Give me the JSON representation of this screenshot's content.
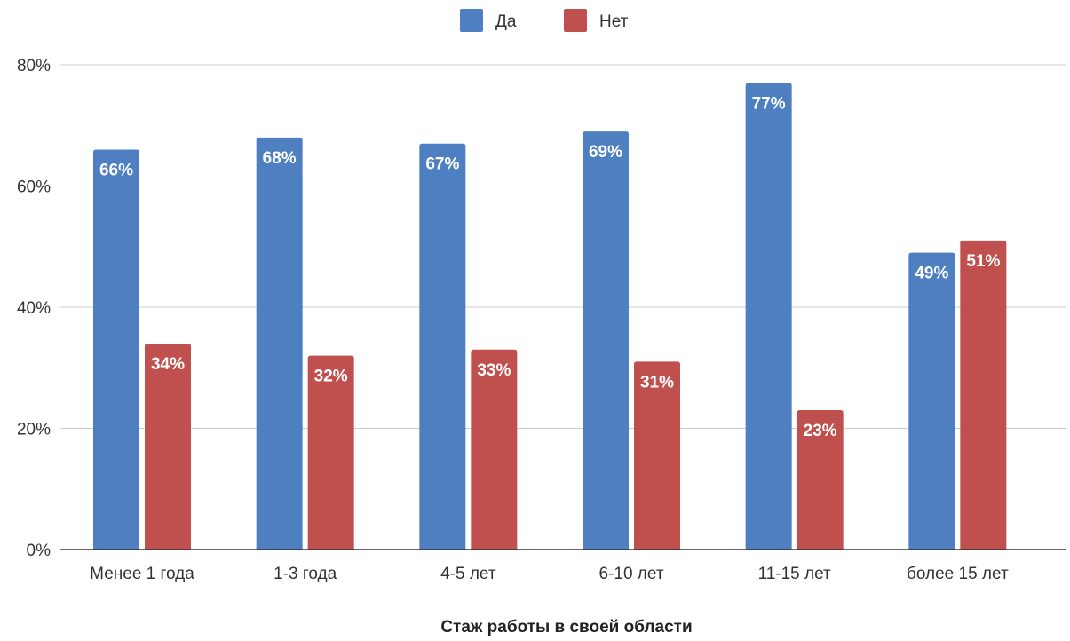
{
  "chart_data": {
    "type": "bar",
    "categories": [
      "Менее 1 года",
      "1-3 года",
      "4-5 лет",
      "6-10 лет",
      "11-15 лет",
      "более 15 лет"
    ],
    "series": [
      {
        "name": "Да",
        "color": "#4e7fc1",
        "values": [
          66,
          68,
          67,
          69,
          77,
          49
        ],
        "labels": [
          "66%",
          "68%",
          "67%",
          "69%",
          "77%",
          "49%"
        ]
      },
      {
        "name": "Нет",
        "color": "#c0504d",
        "values": [
          34,
          32,
          33,
          31,
          23,
          51
        ],
        "labels": [
          "34%",
          "32%",
          "33%",
          "31%",
          "23%",
          "51%"
        ]
      }
    ],
    "xlabel": "Стаж работы в своей области",
    "ylabel": "",
    "ylim": [
      0,
      80
    ],
    "yticks": [
      "0%",
      "20%",
      "40%",
      "60%",
      "80%"
    ],
    "grid": true,
    "legend_position": "top-center"
  }
}
